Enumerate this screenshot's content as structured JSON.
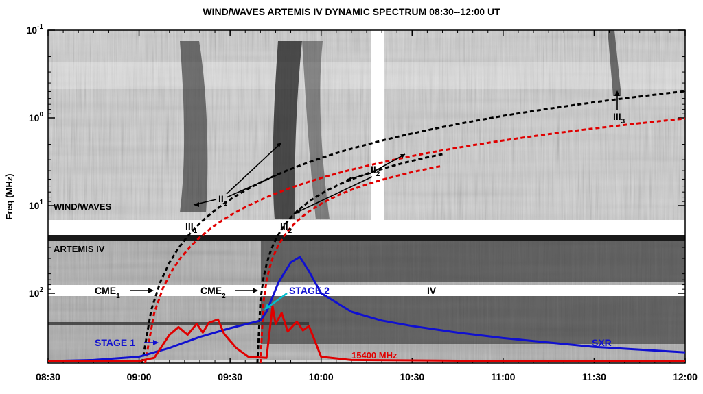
{
  "chart_data": {
    "type": "line",
    "title": "WIND/WAVES ARTEMIS IV DYNAMIC SPECTRUM 08:30--12:00 UT",
    "ylabel": "Freq (MHz)",
    "xlabel": "",
    "x_ticks": [
      "08:30",
      "09:00",
      "09:30",
      "10:00",
      "10:30",
      "11:00",
      "11:30",
      "12:00"
    ],
    "y_ticks": [
      {
        "base": "10",
        "exp": "-1"
      },
      {
        "base": "10",
        "exp": "0"
      },
      {
        "base": "10",
        "exp": "1"
      },
      {
        "base": "10",
        "exp": "2"
      }
    ],
    "xlim": [
      "08:30",
      "12:00"
    ],
    "yscale": "log",
    "yaxis_inverted": true,
    "panel_labels": {
      "upper": "WIND/WAVES",
      "lower": "ARTEMIS IV"
    },
    "annotations": [
      {
        "text": "II",
        "sub": "1"
      },
      {
        "text": "II",
        "sub": "2"
      },
      {
        "text": "III",
        "sub": "1"
      },
      {
        "text": "III",
        "sub": "2"
      },
      {
        "text": "III",
        "sub": "3"
      },
      {
        "text": "CME",
        "sub": "1"
      },
      {
        "text": "CME",
        "sub": "2"
      },
      {
        "text": "STAGE 2"
      },
      {
        "text": "STAGE 1"
      },
      {
        "text": "IV"
      },
      {
        "text": "SXR"
      },
      {
        "text": "15400 MHz"
      }
    ],
    "series": [
      {
        "name": "SXR",
        "color": "#1010d0",
        "points": [
          [
            "08:30",
            0
          ],
          [
            "08:45",
            1
          ],
          [
            "09:00",
            4
          ],
          [
            "09:10",
            12
          ],
          [
            "09:20",
            22
          ],
          [
            "09:30",
            30
          ],
          [
            "09:40",
            37
          ],
          [
            "09:42",
            45
          ],
          [
            "09:46",
            72
          ],
          [
            "09:50",
            90
          ],
          [
            "09:53",
            95
          ],
          [
            "09:56",
            82
          ],
          [
            "10:00",
            62
          ],
          [
            "10:10",
            45
          ],
          [
            "10:20",
            37
          ],
          [
            "10:30",
            32
          ],
          [
            "10:45",
            26
          ],
          [
            "11:00",
            21
          ],
          [
            "11:30",
            13
          ],
          [
            "12:00",
            8
          ]
        ]
      },
      {
        "name": "15400 MHz",
        "color": "#e00000",
        "points": [
          [
            "08:30",
            0
          ],
          [
            "09:00",
            0
          ],
          [
            "09:05",
            3
          ],
          [
            "09:10",
            24
          ],
          [
            "09:13",
            31
          ],
          [
            "09:16",
            24
          ],
          [
            "09:19",
            34
          ],
          [
            "09:21",
            26
          ],
          [
            "09:23",
            35
          ],
          [
            "09:26",
            38
          ],
          [
            "09:28",
            25
          ],
          [
            "09:32",
            12
          ],
          [
            "09:36",
            4
          ],
          [
            "09:42",
            3
          ],
          [
            "09:44",
            50
          ],
          [
            "09:45",
            34
          ],
          [
            "09:47",
            44
          ],
          [
            "09:49",
            27
          ],
          [
            "09:52",
            36
          ],
          [
            "09:54",
            28
          ],
          [
            "09:56",
            32
          ],
          [
            "09:58",
            18
          ],
          [
            "10:00",
            4
          ],
          [
            "10:10",
            1
          ],
          [
            "11:00",
            0
          ],
          [
            "12:00",
            0
          ]
        ]
      }
    ],
    "curves": [
      {
        "label": "CME_1 height-time (black)",
        "color": "#000000",
        "start": "09:01",
        "end": "12:00"
      },
      {
        "label": "CME_1 shock (red)",
        "color": "#e00000",
        "start": "09:02",
        "end": "12:00"
      },
      {
        "label": "CME_2 height-time (black)",
        "color": "#000000",
        "start": "09:39",
        "end": "10:40"
      },
      {
        "label": "CME_2 shock (red)",
        "color": "#e00000",
        "start": "09:40",
        "end": "10:40"
      }
    ],
    "grid": false,
    "legend": "none"
  }
}
